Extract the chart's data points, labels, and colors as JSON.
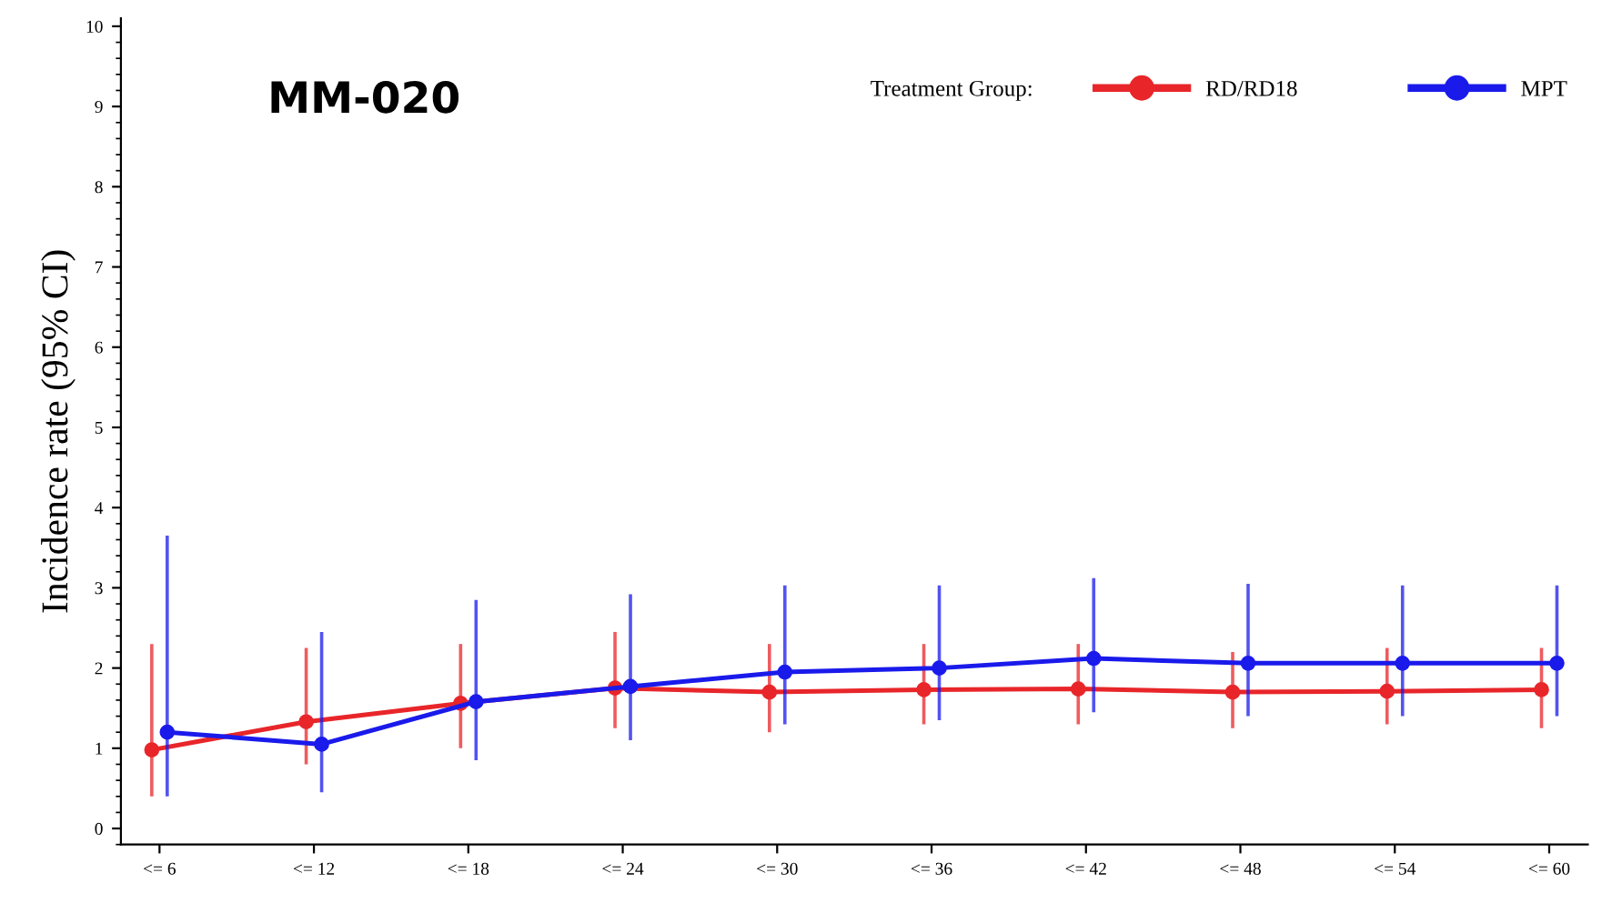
{
  "chart_data": {
    "type": "line",
    "title": "MM-020",
    "ylabel": "Incidence rate (95% CI)",
    "legend_title": "Treatment Group:",
    "categories": [
      "<= 6",
      "<= 12",
      "<= 18",
      "<= 24",
      "<= 30",
      "<= 36",
      "<= 42",
      "<= 48",
      "<= 54",
      "<= 60"
    ],
    "series": [
      {
        "name": "RD/RD18",
        "color": "#e8262a",
        "values": [
          0.98,
          1.33,
          1.56,
          1.75,
          1.7,
          1.73,
          1.74,
          1.7,
          1.71,
          1.73
        ],
        "errors": [
          [
            0.4,
            2.3
          ],
          [
            0.8,
            2.25
          ],
          [
            1.0,
            2.3
          ],
          [
            1.25,
            2.45
          ],
          [
            1.2,
            2.3
          ],
          [
            1.3,
            2.3
          ],
          [
            1.3,
            2.3
          ],
          [
            1.25,
            2.2
          ],
          [
            1.3,
            2.25
          ],
          [
            1.25,
            2.25
          ]
        ]
      },
      {
        "name": "MPT",
        "color": "#1a1aeb",
        "values": [
          1.2,
          1.05,
          1.58,
          1.77,
          1.95,
          2.0,
          2.12,
          2.06,
          2.06,
          2.06
        ],
        "errors": [
          [
            0.4,
            3.65
          ],
          [
            0.45,
            2.45
          ],
          [
            0.85,
            2.85
          ],
          [
            1.1,
            2.92
          ],
          [
            1.3,
            3.03
          ],
          [
            1.35,
            3.03
          ],
          [
            1.45,
            3.12
          ],
          [
            1.4,
            3.05
          ],
          [
            1.4,
            3.03
          ],
          [
            1.4,
            3.03
          ]
        ]
      }
    ],
    "ylim": [
      -0.2,
      10.1
    ],
    "yticks": [
      0,
      1,
      2,
      3,
      4,
      5,
      6,
      7,
      8,
      9,
      10
    ],
    "grid": false,
    "legend": "top right",
    "marker": "circle",
    "line_style": "solid"
  }
}
